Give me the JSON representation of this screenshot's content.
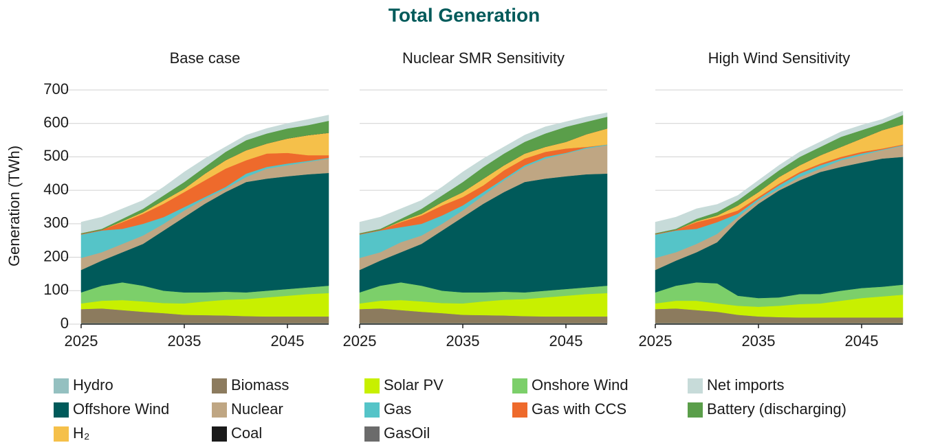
{
  "title": "Total Generation",
  "y_label": "Generation (TWh)",
  "chart_data": [
    {
      "type": "area",
      "title": "Base case",
      "x": [
        2025,
        2027,
        2029,
        2031,
        2033,
        2035,
        2037,
        2039,
        2041,
        2043,
        2045,
        2047,
        2049
      ],
      "xlim": [
        2025,
        2049
      ],
      "xticks": [
        2025,
        2035,
        2045
      ],
      "ylim": [
        0,
        700
      ],
      "yticks": [
        0,
        100,
        200,
        300,
        400,
        500,
        600,
        700
      ],
      "grid": true,
      "series": [
        {
          "name": "Hydro",
          "color": "#94c0c0",
          "values": [
            3,
            3,
            3,
            3,
            3,
            3,
            3,
            3,
            3,
            3,
            3,
            3,
            3
          ]
        },
        {
          "name": "Biomass",
          "color": "#8c7b5e",
          "values": [
            42,
            44,
            39,
            34,
            30,
            25,
            24,
            23,
            21,
            20,
            20,
            20,
            20
          ]
        },
        {
          "name": "Solar PV",
          "color": "#c8f000",
          "values": [
            17,
            23,
            30,
            31,
            30,
            34,
            41,
            47,
            51,
            57,
            62,
            67,
            70
          ]
        },
        {
          "name": "Onshore Wind",
          "color": "#7ccf6a",
          "values": [
            33,
            45,
            53,
            47,
            37,
            33,
            27,
            24,
            20,
            20,
            20,
            20,
            22
          ]
        },
        {
          "name": "Offshore Wind",
          "color": "#005a5a",
          "values": [
            67,
            75,
            90,
            125,
            180,
            225,
            265,
            298,
            330,
            335,
            337,
            338,
            337
          ]
        },
        {
          "name": "Nuclear",
          "color": "#bfa683",
          "values": [
            36,
            25,
            25,
            25,
            20,
            20,
            15,
            10,
            15,
            30,
            33,
            37,
            43
          ]
        },
        {
          "name": "Gas",
          "color": "#55c4c8",
          "values": [
            70,
            65,
            45,
            35,
            20,
            10,
            5,
            5,
            10,
            5,
            5,
            3,
            2
          ]
        },
        {
          "name": "Gas with CCS",
          "color": "#ee6a2c",
          "values": [
            2,
            2,
            20,
            30,
            40,
            45,
            50,
            55,
            40,
            40,
            32,
            17,
            8
          ]
        },
        {
          "name": "H₂",
          "color": "#f5c04a",
          "values": [
            0,
            0,
            3,
            5,
            10,
            10,
            20,
            25,
            30,
            30,
            43,
            60,
            67
          ]
        },
        {
          "name": "Coal",
          "color": "#1a1a1a",
          "values": [
            0,
            0,
            0,
            0,
            0,
            0,
            0,
            0,
            0,
            0,
            0,
            0,
            0
          ]
        },
        {
          "name": "GasOil",
          "color": "#6b6b6b",
          "values": [
            0,
            0,
            0,
            0,
            0,
            0,
            0,
            0,
            0,
            0,
            0,
            0,
            0
          ]
        },
        {
          "name": "Battery (discharging)",
          "color": "#5a9e4a",
          "values": [
            2,
            3,
            7,
            10,
            15,
            20,
            20,
            25,
            30,
            30,
            30,
            30,
            36
          ]
        },
        {
          "name": "Net imports",
          "color": "#c7dbd9",
          "values": [
            33,
            35,
            30,
            25,
            25,
            30,
            25,
            15,
            15,
            15,
            15,
            17,
            17
          ]
        }
      ]
    },
    {
      "type": "area",
      "title": "Nuclear SMR Sensitivity",
      "x": [
        2025,
        2027,
        2029,
        2031,
        2033,
        2035,
        2037,
        2039,
        2041,
        2043,
        2045,
        2047,
        2049
      ],
      "xlim": [
        2025,
        2049
      ],
      "xticks": [
        2025,
        2035,
        2045
      ],
      "ylim": [
        0,
        700
      ],
      "yticks": [
        0,
        100,
        200,
        300,
        400,
        500,
        600,
        700
      ],
      "grid": true,
      "series": [
        {
          "name": "Hydro",
          "color": "#94c0c0",
          "values": [
            3,
            3,
            3,
            3,
            3,
            3,
            3,
            3,
            3,
            3,
            3,
            3,
            3
          ]
        },
        {
          "name": "Biomass",
          "color": "#8c7b5e",
          "values": [
            42,
            44,
            39,
            34,
            30,
            25,
            24,
            23,
            21,
            20,
            20,
            20,
            20
          ]
        },
        {
          "name": "Solar PV",
          "color": "#c8f000",
          "values": [
            17,
            23,
            30,
            31,
            30,
            34,
            41,
            47,
            51,
            57,
            62,
            67,
            70
          ]
        },
        {
          "name": "Onshore Wind",
          "color": "#7ccf6a",
          "values": [
            33,
            45,
            53,
            47,
            37,
            33,
            27,
            24,
            20,
            20,
            20,
            20,
            22
          ]
        },
        {
          "name": "Offshore Wind",
          "color": "#005a5a",
          "values": [
            67,
            75,
            90,
            125,
            180,
            225,
            265,
            298,
            330,
            335,
            337,
            338,
            335
          ]
        },
        {
          "name": "Nuclear",
          "color": "#bfa683",
          "values": [
            36,
            25,
            30,
            25,
            20,
            20,
            25,
            35,
            45,
            60,
            68,
            77,
            85
          ]
        },
        {
          "name": "Gas",
          "color": "#55c4c8",
          "values": [
            70,
            65,
            45,
            35,
            25,
            15,
            10,
            5,
            5,
            5,
            2,
            3,
            2
          ]
        },
        {
          "name": "Gas with CCS",
          "color": "#ee6a2c",
          "values": [
            2,
            2,
            15,
            25,
            30,
            25,
            20,
            25,
            20,
            15,
            13,
            2,
            0
          ]
        },
        {
          "name": "H₂",
          "color": "#f5c04a",
          "values": [
            0,
            0,
            3,
            5,
            10,
            15,
            20,
            15,
            15,
            15,
            20,
            38,
            48
          ]
        },
        {
          "name": "Coal",
          "color": "#1a1a1a",
          "values": [
            0,
            0,
            0,
            0,
            0,
            0,
            0,
            0,
            0,
            0,
            0,
            0,
            0
          ]
        },
        {
          "name": "GasOil",
          "color": "#6b6b6b",
          "values": [
            0,
            0,
            0,
            0,
            0,
            0,
            0,
            0,
            0,
            0,
            0,
            0,
            0
          ]
        },
        {
          "name": "Battery (discharging)",
          "color": "#5a9e4a",
          "values": [
            2,
            3,
            7,
            15,
            20,
            30,
            35,
            35,
            35,
            40,
            45,
            37,
            35
          ]
        },
        {
          "name": "Net imports",
          "color": "#c7dbd9",
          "values": [
            33,
            35,
            30,
            25,
            25,
            30,
            25,
            20,
            20,
            20,
            15,
            15,
            12
          ]
        }
      ]
    },
    {
      "type": "area",
      "title": "High Wind Sensitivity",
      "x": [
        2025,
        2027,
        2029,
        2031,
        2033,
        2035,
        2037,
        2039,
        2041,
        2043,
        2045,
        2047,
        2049
      ],
      "xlim": [
        2025,
        2049
      ],
      "xticks": [
        2025,
        2035,
        2045
      ],
      "ylim": [
        0,
        700
      ],
      "yticks": [
        0,
        100,
        200,
        300,
        400,
        500,
        600,
        700
      ],
      "grid": true,
      "series": [
        {
          "name": "Hydro",
          "color": "#94c0c0",
          "values": [
            3,
            3,
            3,
            3,
            3,
            3,
            3,
            3,
            3,
            3,
            3,
            3,
            3
          ]
        },
        {
          "name": "Biomass",
          "color": "#8c7b5e",
          "values": [
            42,
            44,
            39,
            34,
            25,
            20,
            18,
            17,
            17,
            17,
            17,
            17,
            17
          ]
        },
        {
          "name": "Solar PV",
          "color": "#c8f000",
          "values": [
            17,
            23,
            28,
            25,
            27,
            29,
            34,
            40,
            42,
            50,
            58,
            63,
            68
          ]
        },
        {
          "name": "Onshore Wind",
          "color": "#7ccf6a",
          "values": [
            33,
            45,
            55,
            60,
            30,
            26,
            25,
            30,
            28,
            30,
            30,
            29,
            30
          ]
        },
        {
          "name": "Offshore Wind",
          "color": "#005a5a",
          "values": [
            67,
            75,
            90,
            123,
            225,
            282,
            320,
            340,
            365,
            370,
            375,
            383,
            382
          ]
        },
        {
          "name": "Nuclear",
          "color": "#bfa683",
          "values": [
            36,
            25,
            25,
            25,
            10,
            10,
            5,
            10,
            10,
            20,
            22,
            25,
            33
          ]
        },
        {
          "name": "Gas",
          "color": "#55c4c8",
          "values": [
            70,
            65,
            45,
            35,
            10,
            5,
            10,
            10,
            10,
            5,
            5,
            2,
            2
          ]
        },
        {
          "name": "Gas with CCS",
          "color": "#ee6a2c",
          "values": [
            2,
            2,
            20,
            15,
            10,
            5,
            5,
            5,
            5,
            5,
            5,
            3,
            2
          ]
        },
        {
          "name": "H₂",
          "color": "#f5c04a",
          "values": [
            0,
            0,
            3,
            5,
            15,
            15,
            20,
            20,
            25,
            30,
            40,
            55,
            61
          ]
        },
        {
          "name": "Coal",
          "color": "#1a1a1a",
          "values": [
            0,
            0,
            0,
            0,
            0,
            0,
            0,
            0,
            0,
            0,
            0,
            0,
            0
          ]
        },
        {
          "name": "GasOil",
          "color": "#6b6b6b",
          "values": [
            0,
            0,
            0,
            0,
            0,
            0,
            0,
            0,
            0,
            0,
            0,
            0,
            0
          ]
        },
        {
          "name": "Battery (discharging)",
          "color": "#5a9e4a",
          "values": [
            2,
            3,
            7,
            10,
            15,
            20,
            20,
            25,
            25,
            30,
            25,
            20,
            27
          ]
        },
        {
          "name": "Net imports",
          "color": "#c7dbd9",
          "values": [
            33,
            35,
            30,
            23,
            15,
            15,
            15,
            15,
            15,
            15,
            15,
            12,
            12
          ]
        }
      ]
    }
  ]
}
